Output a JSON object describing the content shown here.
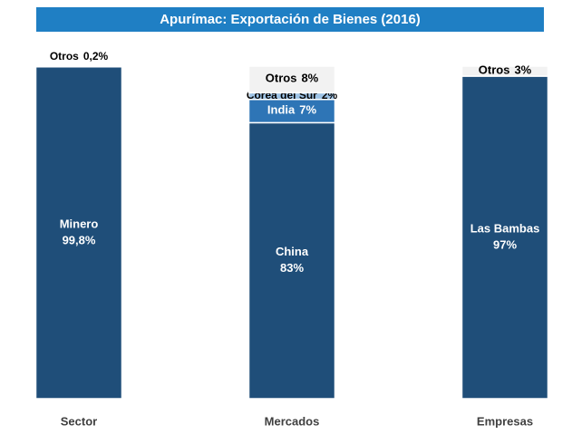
{
  "chart_data": {
    "type": "stacked_bar",
    "title": "Apurímac: Exportación de Bienes (2016)",
    "categories": [
      "Sector",
      "Mercados",
      "Empresas"
    ],
    "ylim": [
      0,
      100
    ],
    "series": [
      {
        "name": "Minero",
        "color": "#1f4e79",
        "values": [
          99.8,
          null,
          null
        ],
        "value_labels": [
          "99,8%",
          null,
          null
        ]
      },
      {
        "name": "China",
        "color": "#1f4e79",
        "values": [
          null,
          83,
          null
        ],
        "value_labels": [
          null,
          "83%",
          null
        ]
      },
      {
        "name": "Las Bambas",
        "color": "#1f4e79",
        "values": [
          null,
          null,
          97
        ],
        "value_labels": [
          null,
          null,
          "97%"
        ]
      },
      {
        "name": "India",
        "color": "#2e75b6",
        "values": [
          null,
          7,
          null
        ],
        "value_labels": [
          null,
          "7%",
          null
        ]
      },
      {
        "name": "Corea del Sur",
        "color": "#9dc3e6",
        "values": [
          null,
          2,
          null
        ],
        "value_labels": [
          null,
          "2%",
          null
        ]
      },
      {
        "name": "Otros",
        "color": "#f2f2f2",
        "values": [
          0.2,
          8,
          3
        ],
        "value_labels": [
          "0,2%",
          "8%",
          "3%"
        ]
      }
    ]
  }
}
